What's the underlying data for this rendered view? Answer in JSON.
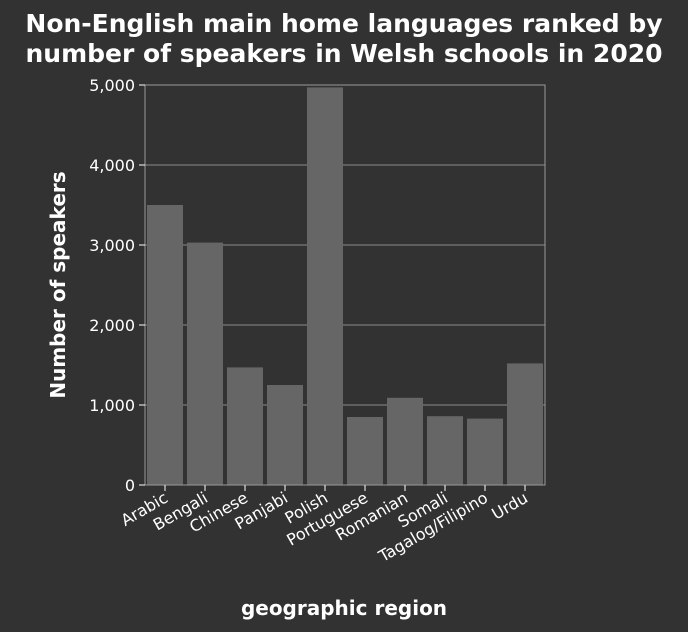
{
  "chart_data": {
    "type": "bar",
    "title_line1": "Non-English main home languages ranked by",
    "title_line2": "number of speakers in Welsh schools in 2020",
    "xlabel": "geographic region",
    "ylabel": "Number of speakers",
    "categories": [
      "Arabic",
      "Bengali",
      "Chinese",
      "Panjabi",
      "Polish",
      "Portuguese",
      "Romanian",
      "Somali",
      "Tagalog/Filipino",
      "Urdu"
    ],
    "values": [
      3500,
      3030,
      1470,
      1250,
      4970,
      850,
      1090,
      860,
      830,
      1520
    ],
    "ylim": [
      0,
      5000
    ],
    "yticks": [
      0,
      1000,
      2000,
      3000,
      4000,
      5000
    ],
    "ytick_labels": [
      "0",
      "1,000",
      "2,000",
      "3,000",
      "4,000",
      "5,000"
    ],
    "grid": true,
    "colors": {
      "background": "#323232",
      "bar": "#666666",
      "grid": "#8a8a8a",
      "text": "#ffffff"
    }
  }
}
